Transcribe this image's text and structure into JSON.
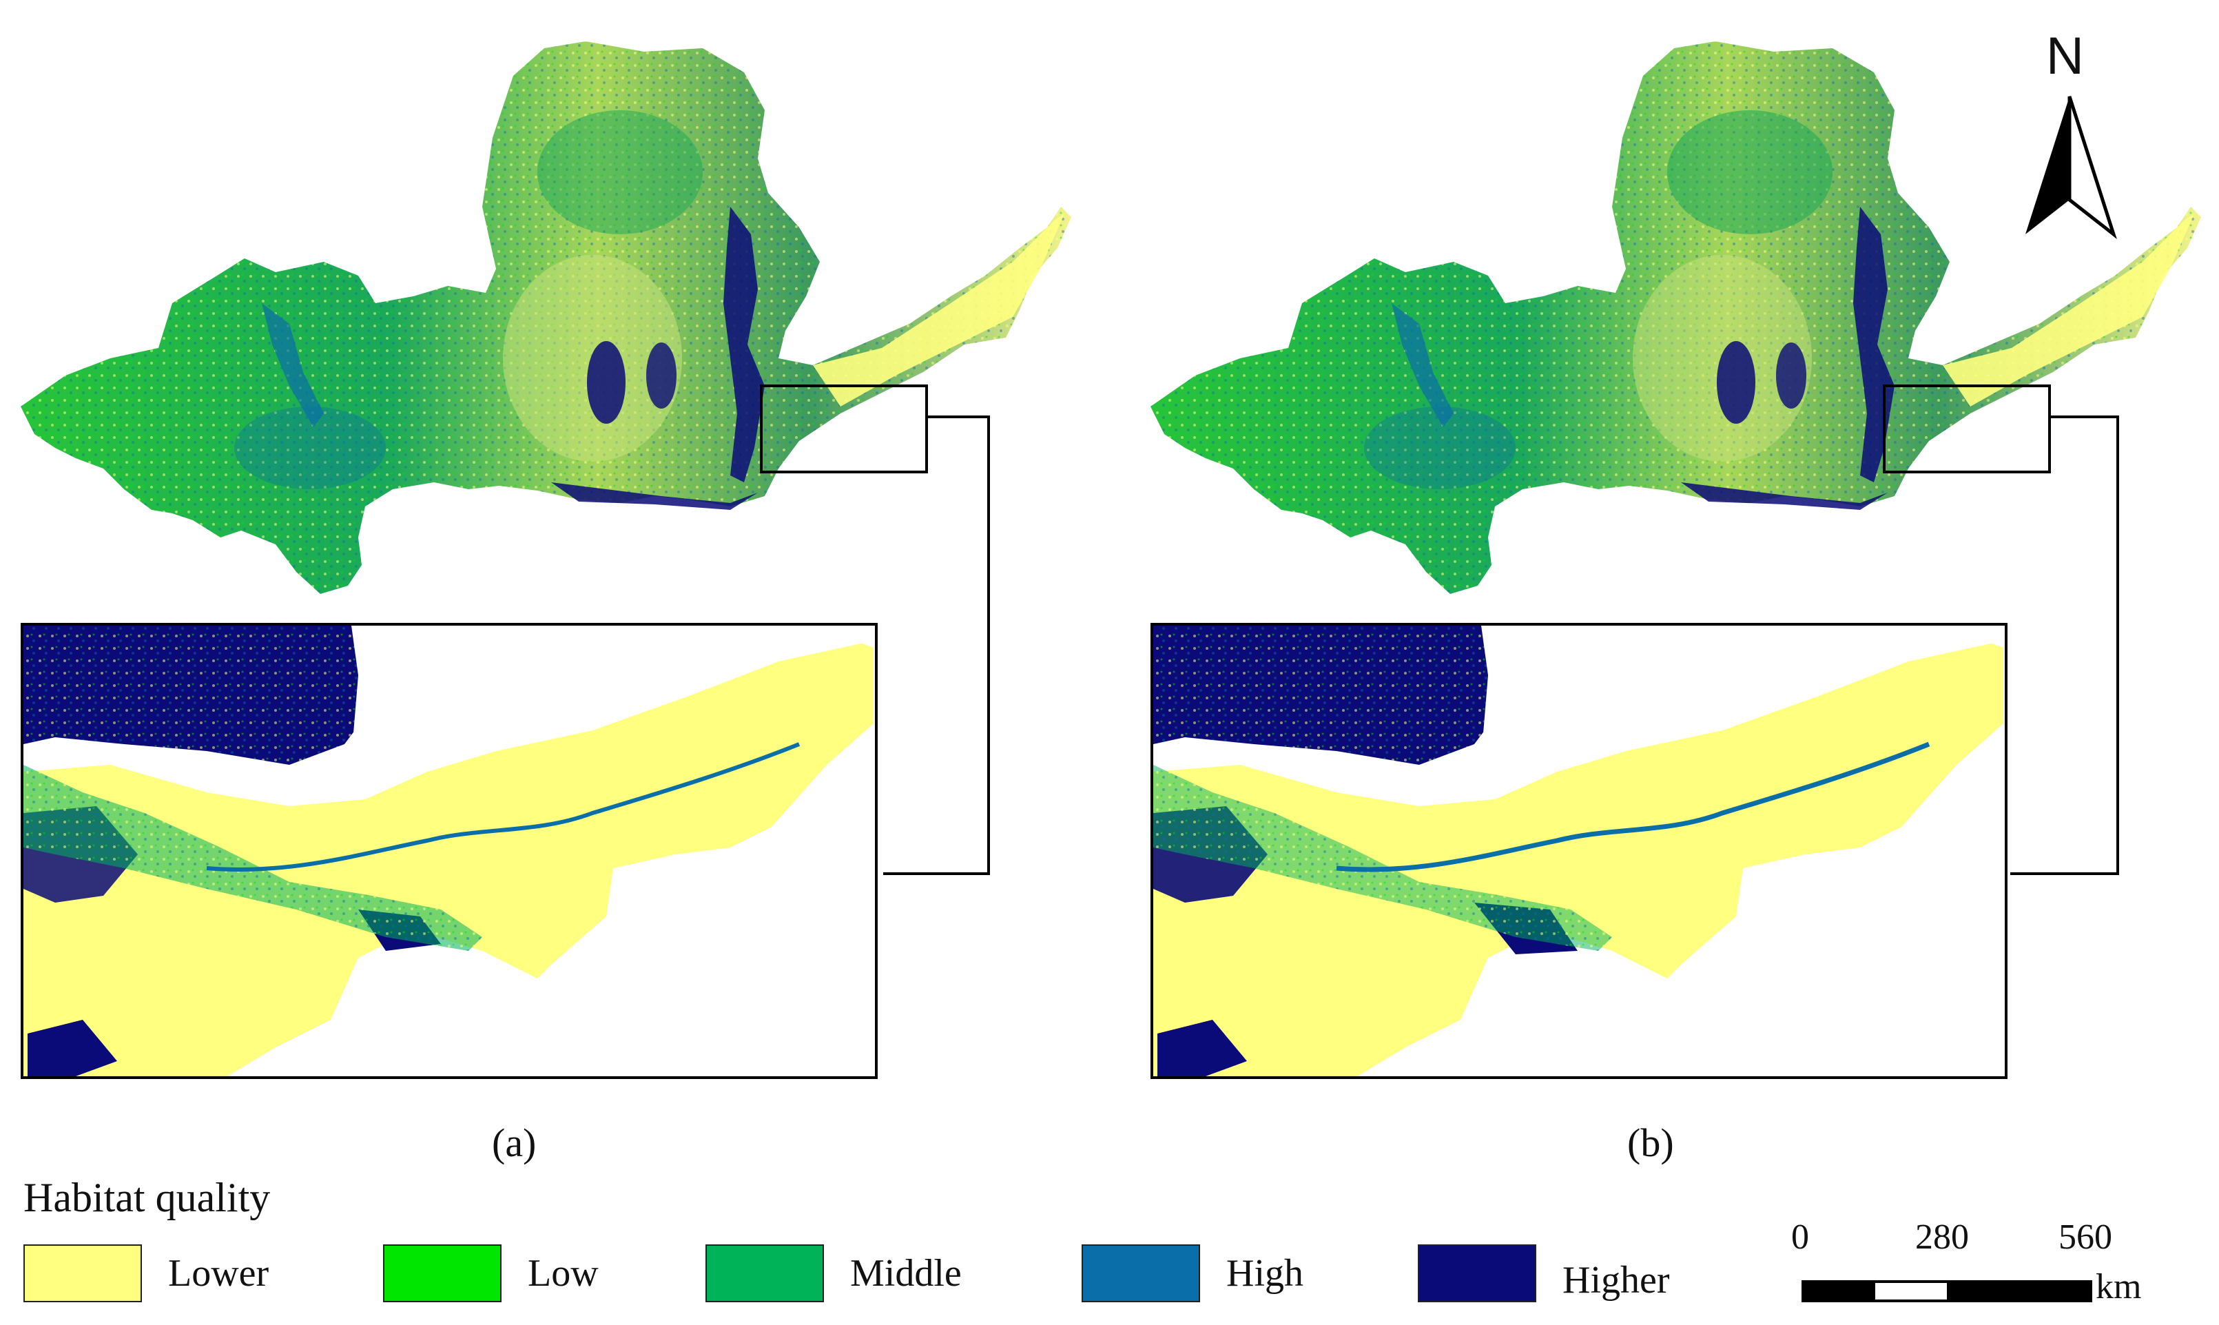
{
  "panels": [
    {
      "id": "a",
      "label": "(a)"
    },
    {
      "id": "b",
      "label": "(b)"
    }
  ],
  "legend": {
    "title": "Habitat quality",
    "classes": [
      {
        "name": "Lower",
        "color": "#ffff80"
      },
      {
        "name": "Low",
        "color": "#00e600"
      },
      {
        "name": "Middle",
        "color": "#00b359"
      },
      {
        "name": "High",
        "color": "#0a6ea8"
      },
      {
        "name": "Higher",
        "color": "#0a0a78"
      }
    ]
  },
  "scale_bar": {
    "ticks": [
      "0",
      "280",
      "560"
    ],
    "unit": "km"
  },
  "north_arrow": {
    "label": "N"
  }
}
